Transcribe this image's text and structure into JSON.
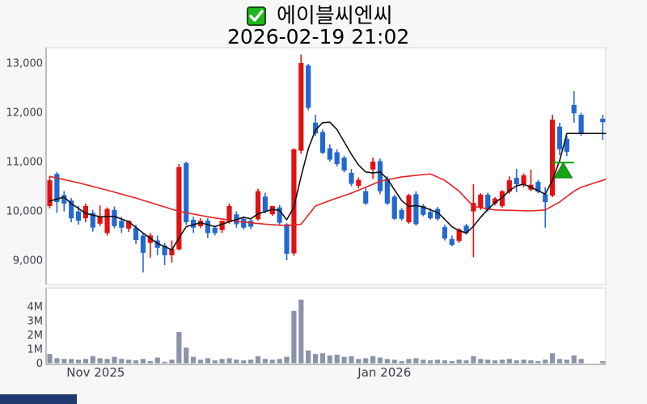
{
  "chart": {
    "title": "에이블씨엔씨",
    "datetime": "2026-02-19 21:02"
  },
  "colors": {
    "up": "#e01111",
    "down": "#2268cf",
    "ma_short": "#111111",
    "ma_long": "#e62222",
    "volume_bar": "#8b93a8",
    "marker_green": "#14a414",
    "marker_line_green": "#00a400",
    "checkbox_green": "#1bb71b",
    "axis_text": "#3a3f4a",
    "spine": "#7f7f7f",
    "light_spine": "#d4d4d4",
    "figure_bg": "#f7f7f7",
    "plot_bg": "#ffffff"
  },
  "chart_data": {
    "type": "candlestick+volume",
    "title": "에이블씨엔씨",
    "datetime": "2026-02-19 21:02",
    "price_axis": {
      "ticks": [
        {
          "value": 13000,
          "label": "13,000"
        },
        {
          "value": 12000,
          "label": "12,000"
        },
        {
          "value": 11000,
          "label": "11,000"
        },
        {
          "value": 10000,
          "label": "10,000"
        },
        {
          "value": 9000,
          "label": "9,000"
        }
      ],
      "range_note": "main panel, won per share"
    },
    "volume_axis": {
      "ticks": [
        {
          "value": 4,
          "label": "4M"
        },
        {
          "value": 3,
          "label": "3M"
        },
        {
          "value": 2,
          "label": "2M"
        },
        {
          "value": 1,
          "label": "1M"
        },
        {
          "value": 0,
          "label": "0"
        }
      ],
      "unit": "shares (millions)"
    },
    "x_axis": {
      "labels": [
        {
          "label": "Nov 2025",
          "slot": 6.4
        },
        {
          "label": "Jan 2026",
          "slot": 46.6
        }
      ]
    },
    "candles_format": [
      "open",
      "high",
      "low",
      "close"
    ],
    "candles": [
      [
        10100,
        10700,
        10050,
        10620
      ],
      [
        10750,
        10790,
        9960,
        10180
      ],
      [
        10320,
        10400,
        9990,
        10150
      ],
      [
        10210,
        10260,
        9770,
        9850
      ],
      [
        9990,
        10100,
        9720,
        9800
      ],
      [
        9850,
        10150,
        9770,
        10100
      ],
      [
        9960,
        10020,
        9580,
        9660
      ],
      [
        9740,
        10110,
        9690,
        9880
      ],
      [
        9550,
        10070,
        9500,
        10040
      ],
      [
        10020,
        10090,
        9650,
        9690
      ],
      [
        9800,
        9880,
        9550,
        9660
      ],
      [
        9640,
        9800,
        9570,
        9800
      ],
      [
        9660,
        9720,
        9330,
        9410
      ],
      [
        9500,
        9550,
        8750,
        9150
      ],
      [
        9350,
        9550,
        9050,
        9500
      ],
      [
        9400,
        9500,
        9100,
        9250
      ],
      [
        9300,
        9350,
        8900,
        9100
      ],
      [
        9100,
        9400,
        8950,
        9230
      ],
      [
        9220,
        10950,
        9200,
        10890
      ],
      [
        10970,
        11000,
        9720,
        9770
      ],
      [
        9820,
        9880,
        9550,
        9660
      ],
      [
        9690,
        9850,
        9650,
        9800
      ],
      [
        9800,
        9850,
        9450,
        9550
      ],
      [
        9660,
        9700,
        9500,
        9550
      ],
      [
        9610,
        9800,
        9550,
        9800
      ],
      [
        9770,
        10150,
        9740,
        10100
      ],
      [
        9930,
        9990,
        9660,
        9730
      ],
      [
        9840,
        9890,
        9620,
        9660
      ],
      [
        9800,
        9830,
        9630,
        9680
      ],
      [
        9830,
        10450,
        9800,
        10400
      ],
      [
        10290,
        10370,
        9950,
        9990
      ],
      [
        9930,
        10100,
        9900,
        10100
      ],
      [
        10070,
        10120,
        9720,
        9760
      ],
      [
        9730,
        9750,
        9000,
        9130
      ],
      [
        9140,
        11270,
        9090,
        11250
      ],
      [
        11220,
        13170,
        11160,
        13000
      ],
      [
        12950,
        12980,
        12040,
        12090
      ],
      [
        11790,
        11950,
        11520,
        11570
      ],
      [
        11600,
        11650,
        11150,
        11180
      ],
      [
        11270,
        11350,
        11000,
        11040
      ],
      [
        11190,
        11250,
        10900,
        10950
      ],
      [
        11080,
        11120,
        10780,
        10820
      ],
      [
        10770,
        10850,
        10500,
        10550
      ],
      [
        10510,
        10680,
        10460,
        10630
      ],
      [
        10400,
        10480,
        10120,
        10150
      ],
      [
        10840,
        11080,
        10650,
        11000
      ],
      [
        11010,
        11060,
        10340,
        10400
      ],
      [
        10650,
        10700,
        10120,
        10150
      ],
      [
        10290,
        10330,
        9820,
        9840
      ],
      [
        10020,
        10060,
        9800,
        9840
      ],
      [
        9770,
        10350,
        9740,
        10320
      ],
      [
        10340,
        10400,
        9700,
        9730
      ],
      [
        10100,
        10140,
        9890,
        9920
      ],
      [
        9980,
        10050,
        9820,
        9850
      ],
      [
        10040,
        10080,
        9800,
        9840
      ],
      [
        9670,
        9720,
        9400,
        9440
      ],
      [
        9430,
        9500,
        9280,
        9310
      ],
      [
        9390,
        9650,
        9350,
        9620
      ],
      [
        9700,
        9740,
        9520,
        9550
      ],
      [
        9990,
        10540,
        9060,
        10160
      ],
      [
        10060,
        10360,
        10020,
        10330
      ],
      [
        10330,
        10370,
        9990,
        10020
      ],
      [
        10150,
        10280,
        10110,
        10250
      ],
      [
        10100,
        10420,
        10060,
        10400
      ],
      [
        10390,
        10700,
        10350,
        10620
      ],
      [
        10670,
        10850,
        10380,
        10540
      ],
      [
        10540,
        10760,
        10480,
        10720
      ],
      [
        10430,
        10840,
        10400,
        10530
      ],
      [
        10590,
        10630,
        10360,
        10390
      ],
      [
        10340,
        10480,
        9660,
        10180
      ],
      [
        10310,
        11950,
        10280,
        11850
      ],
      [
        11710,
        11790,
        11130,
        11250
      ],
      [
        11460,
        11520,
        11110,
        11200
      ],
      [
        12150,
        12430,
        11790,
        11980
      ],
      [
        11950,
        11990,
        11520,
        11570
      ],
      null,
      null,
      [
        11870,
        11950,
        11440,
        11800
      ]
    ],
    "volumes_m": [
      0.65,
      0.35,
      0.3,
      0.3,
      0.25,
      0.3,
      0.5,
      0.35,
      0.3,
      0.45,
      0.3,
      0.25,
      0.2,
      0.3,
      0.15,
      0.4,
      0.1,
      0.25,
      2.2,
      1.1,
      0.45,
      0.25,
      0.35,
      0.2,
      0.3,
      0.35,
      0.25,
      0.2,
      0.25,
      0.5,
      0.3,
      0.25,
      0.3,
      0.45,
      3.7,
      4.5,
      0.9,
      0.65,
      0.7,
      0.55,
      0.6,
      0.45,
      0.5,
      0.3,
      0.35,
      0.5,
      0.4,
      0.3,
      0.25,
      0.15,
      0.3,
      0.35,
      0.25,
      0.2,
      0.25,
      0.2,
      0.15,
      0.25,
      0.2,
      0.5,
      0.3,
      0.25,
      0.2,
      0.25,
      0.3,
      0.2,
      0.25,
      0.2,
      0.15,
      0.25,
      0.7,
      0.3,
      0.25,
      0.55,
      0.3,
      null,
      null,
      0.15
    ],
    "ma_short_points": [
      [
        0,
        10200
      ],
      [
        2,
        10280
      ],
      [
        3,
        10150
      ],
      [
        5,
        9950
      ],
      [
        7,
        9880
      ],
      [
        9,
        9890
      ],
      [
        11,
        9780
      ],
      [
        13,
        9550
      ],
      [
        15,
        9340
      ],
      [
        17,
        9210
      ],
      [
        18,
        9450
      ],
      [
        19,
        9680
      ],
      [
        21,
        9760
      ],
      [
        23,
        9680
      ],
      [
        25,
        9780
      ],
      [
        27,
        9870
      ],
      [
        28,
        9840
      ],
      [
        29,
        9940
      ],
      [
        31,
        10030
      ],
      [
        32,
        10010
      ],
      [
        33,
        9820
      ],
      [
        34,
        10080
      ],
      [
        35,
        10700
      ],
      [
        36,
        11260
      ],
      [
        37,
        11640
      ],
      [
        38,
        11790
      ],
      [
        39,
        11800
      ],
      [
        40,
        11650
      ],
      [
        41,
        11400
      ],
      [
        42,
        11150
      ],
      [
        43,
        10930
      ],
      [
        44,
        10790
      ],
      [
        45,
        10770
      ],
      [
        46,
        10790
      ],
      [
        47,
        10650
      ],
      [
        48,
        10430
      ],
      [
        49,
        10210
      ],
      [
        50,
        10090
      ],
      [
        51,
        10110
      ],
      [
        52,
        10080
      ],
      [
        53,
        10020
      ],
      [
        54,
        9970
      ],
      [
        55,
        9830
      ],
      [
        56,
        9680
      ],
      [
        57,
        9600
      ],
      [
        58,
        9550
      ],
      [
        59,
        9690
      ],
      [
        60,
        9870
      ],
      [
        61,
        10030
      ],
      [
        62,
        10170
      ],
      [
        63,
        10270
      ],
      [
        64,
        10410
      ],
      [
        65,
        10510
      ],
      [
        66,
        10540
      ],
      [
        67,
        10480
      ],
      [
        68,
        10410
      ],
      [
        69,
        10340
      ],
      [
        70,
        10620
      ],
      [
        71,
        11020
      ],
      [
        72,
        11570
      ],
      [
        77.4,
        11570
      ]
    ],
    "ma_long_points": [
      [
        0,
        10700
      ],
      [
        4,
        10570
      ],
      [
        8,
        10420
      ],
      [
        12,
        10260
      ],
      [
        16,
        10080
      ],
      [
        18,
        9990
      ],
      [
        22,
        9880
      ],
      [
        26,
        9790
      ],
      [
        30,
        9730
      ],
      [
        33,
        9700
      ],
      [
        35,
        9730
      ],
      [
        37,
        10100
      ],
      [
        39,
        10210
      ],
      [
        42,
        10360
      ],
      [
        44,
        10480
      ],
      [
        46,
        10600
      ],
      [
        49,
        10690
      ],
      [
        53,
        10750
      ],
      [
        55,
        10620
      ],
      [
        57,
        10400
      ],
      [
        59,
        10090
      ],
      [
        62,
        10020
      ],
      [
        67,
        10000
      ],
      [
        69,
        10020
      ],
      [
        71,
        10180
      ],
      [
        73,
        10400
      ],
      [
        74,
        10480
      ],
      [
        77.4,
        10640
      ]
    ],
    "signal_marker": {
      "shape": "triangle-up",
      "slot": 71.5,
      "price_apex": 10980,
      "price_base": 10670,
      "hline_price": 10980,
      "hline_slots": [
        70,
        73
      ]
    }
  }
}
